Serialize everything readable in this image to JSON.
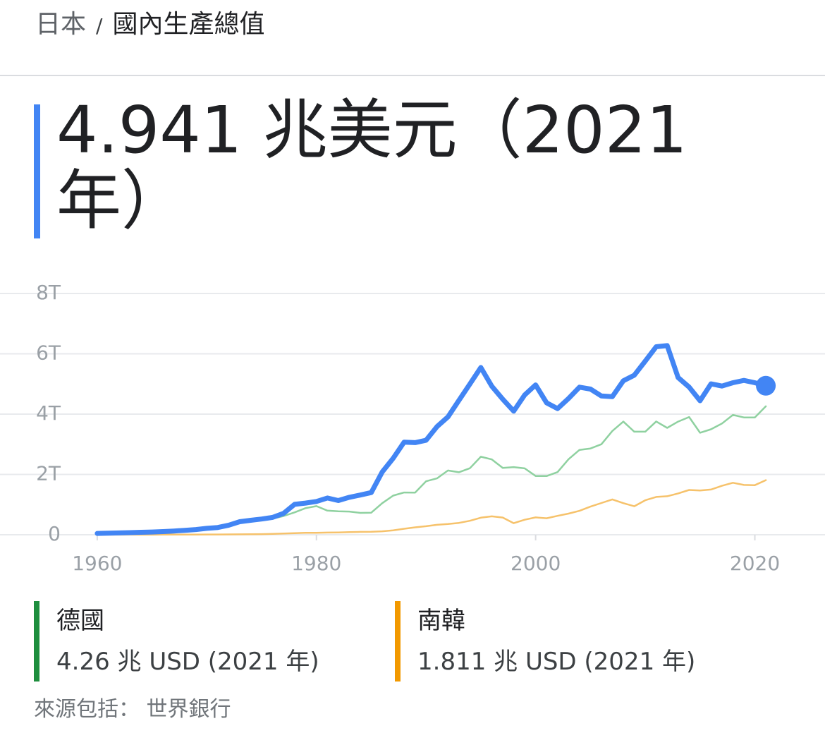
{
  "breadcrumb": {
    "separator": "/",
    "title": "國內生產總值"
  },
  "headline": "4.941 兆美元（2021 年）",
  "chart_data": {
    "type": "line",
    "x": [
      1960,
      1961,
      1962,
      1963,
      1964,
      1965,
      1966,
      1967,
      1968,
      1969,
      1970,
      1971,
      1972,
      1973,
      1974,
      1975,
      1976,
      1977,
      1978,
      1979,
      1980,
      1981,
      1982,
      1983,
      1984,
      1985,
      1986,
      1987,
      1988,
      1989,
      1990,
      1991,
      1992,
      1993,
      1994,
      1995,
      1996,
      1997,
      1998,
      1999,
      2000,
      2001,
      2002,
      2003,
      2004,
      2005,
      2006,
      2007,
      2008,
      2009,
      2010,
      2011,
      2012,
      2013,
      2014,
      2015,
      2016,
      2017,
      2018,
      2019,
      2020,
      2021
    ],
    "xlim": [
      1951.13,
      2026.4
    ],
    "xticks": [
      1960,
      1980,
      2000,
      2020
    ],
    "ylim": [
      0,
      8
    ],
    "yticks": [
      0,
      {
        "value": 2,
        "label": "2T"
      },
      {
        "value": 4,
        "label": "4T"
      },
      {
        "value": 6,
        "label": "6T"
      },
      {
        "value": 8,
        "label": "8T"
      }
    ],
    "grid": true,
    "series": [
      {
        "name": "日本",
        "color": "#4285f4",
        "values": [
          0.044,
          0.054,
          0.061,
          0.07,
          0.082,
          0.091,
          0.106,
          0.124,
          0.147,
          0.172,
          0.213,
          0.241,
          0.318,
          0.432,
          0.48,
          0.522,
          0.576,
          0.709,
          1.009,
          1.05,
          1.105,
          1.218,
          1.134,
          1.243,
          1.318,
          1.399,
          2.079,
          2.535,
          3.072,
          3.054,
          3.133,
          3.584,
          3.909,
          4.454,
          4.999,
          5.546,
          4.924,
          4.493,
          4.098,
          4.636,
          4.968,
          4.374,
          4.183,
          4.519,
          4.894,
          4.831,
          4.601,
          4.579,
          5.106,
          5.289,
          5.759,
          6.233,
          6.272,
          5.212,
          4.897,
          4.445,
          5.004,
          4.931,
          5.041,
          5.118,
          5.04,
          4.941
        ]
      },
      {
        "name": "德國",
        "color": "#8fd1a0",
        "values": [
          null,
          null,
          null,
          null,
          null,
          null,
          null,
          null,
          null,
          null,
          0.216,
          0.249,
          0.3,
          0.398,
          0.445,
          0.505,
          0.535,
          0.619,
          0.741,
          0.882,
          0.95,
          0.8,
          0.776,
          0.77,
          0.726,
          0.732,
          1.046,
          1.298,
          1.401,
          1.398,
          1.772,
          1.868,
          2.131,
          2.072,
          2.206,
          2.586,
          2.498,
          2.218,
          2.243,
          2.2,
          1.948,
          1.946,
          2.078,
          2.506,
          2.815,
          2.861,
          3.002,
          3.44,
          3.752,
          3.418,
          3.417,
          3.757,
          3.544,
          3.753,
          3.905,
          3.383,
          3.496,
          3.69,
          3.975,
          3.889,
          3.887,
          4.26
        ]
      },
      {
        "name": "南韓",
        "color": "#f6c26b",
        "values": [
          0.004,
          0.0023,
          0.0027,
          0.0039,
          0.0034,
          0.0031,
          0.0038,
          0.0047,
          0.0061,
          0.0077,
          0.009,
          0.0099,
          0.0109,
          0.0139,
          0.0196,
          0.0217,
          0.0299,
          0.0391,
          0.0523,
          0.0664,
          0.065,
          0.0724,
          0.078,
          0.0871,
          0.0968,
          0.1005,
          0.1156,
          0.1473,
          0.1996,
          0.2461,
          0.2833,
          0.3301,
          0.3558,
          0.3926,
          0.4632,
          0.5663,
          0.6101,
          0.5699,
          0.3834,
          0.4974,
          0.5763,
          0.5476,
          0.6271,
          0.7025,
          0.7936,
          0.9343,
          1.0531,
          1.1723,
          1.0472,
          0.9439,
          1.1441,
          1.253,
          1.2781,
          1.3704,
          1.4843,
          1.4658,
          1.5,
          1.6233,
          1.7245,
          1.651,
          1.6444,
          1.811
        ]
      }
    ]
  },
  "comparisons": [
    {
      "summary": "4.26 兆 USD (2021 年)"
    },
    {
      "summary": "1.811 兆 USD (2021 年)"
    }
  ],
  "source": "來源包括： 世界銀行"
}
